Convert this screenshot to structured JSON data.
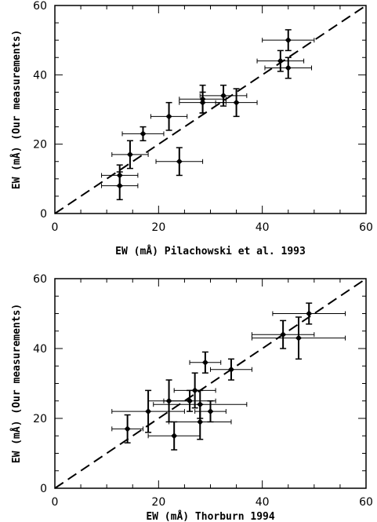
{
  "chart_data": [
    {
      "type": "scatter",
      "xlabel": "EW (mÅ) Pilachowski et al. 1993",
      "ylabel": "EW (mÅ) (Our measurements)",
      "xlim": [
        0,
        60
      ],
      "ylim": [
        0,
        60
      ],
      "xticks": [
        0,
        20,
        40,
        60
      ],
      "yticks": [
        0,
        20,
        40,
        60
      ],
      "xtick_labels": [
        "0",
        "20",
        "40",
        "60"
      ],
      "ytick_labels": [
        "0",
        "20",
        "40",
        "60"
      ],
      "minor_tick_step": 5,
      "reference_line": {
        "style": "dashed",
        "from": [
          0,
          0
        ],
        "to": [
          60,
          60
        ]
      },
      "grid": false,
      "points": [
        {
          "x": 45.0,
          "y": 50.0,
          "xerr": 5.0,
          "yerr": 3.0
        },
        {
          "x": 43.5,
          "y": 44.0,
          "xerr": 4.5,
          "yerr": 3.0
        },
        {
          "x": 45.0,
          "y": 42.0,
          "xerr": 4.5,
          "yerr": 3.0
        },
        {
          "x": 32.5,
          "y": 34.0,
          "xerr": 4.5,
          "yerr": 3.0
        },
        {
          "x": 28.5,
          "y": 33.0,
          "xerr": 4.5,
          "yerr": 4.0
        },
        {
          "x": 28.5,
          "y": 32.0,
          "xerr": 4.5,
          "yerr": 3.0
        },
        {
          "x": 35.0,
          "y": 32.0,
          "xerr": 4.0,
          "yerr": 4.0
        },
        {
          "x": 22.0,
          "y": 28.0,
          "xerr": 3.5,
          "yerr": 4.0
        },
        {
          "x": 17.0,
          "y": 23.0,
          "xerr": 4.0,
          "yerr": 2.0
        },
        {
          "x": 14.5,
          "y": 17.0,
          "xerr": 3.5,
          "yerr": 4.0
        },
        {
          "x": 24.0,
          "y": 15.0,
          "xerr": 4.5,
          "yerr": 4.0
        },
        {
          "x": 12.5,
          "y": 11.0,
          "xerr": 3.5,
          "yerr": 3.0
        },
        {
          "x": 12.5,
          "y": 8.0,
          "xerr": 3.5,
          "yerr": 4.0
        }
      ]
    },
    {
      "type": "scatter",
      "xlabel": "EW (mÅ) Thorburn 1994",
      "ylabel": "EW (mÅ) (Our measurements)",
      "xlim": [
        0,
        60
      ],
      "ylim": [
        0,
        60
      ],
      "xticks": [
        0,
        20,
        40,
        60
      ],
      "yticks": [
        0,
        20,
        40,
        60
      ],
      "xtick_labels": [
        "0",
        "20",
        "40",
        "60"
      ],
      "ytick_labels": [
        "0",
        "20",
        "40",
        "60"
      ],
      "minor_tick_step": 5,
      "reference_line": {
        "style": "dashed",
        "from": [
          0,
          0
        ],
        "to": [
          60,
          60
        ]
      },
      "grid": false,
      "points": [
        {
          "x": 49.0,
          "y": 50.0,
          "xerr": 7.0,
          "yerr": 3.0
        },
        {
          "x": 44.0,
          "y": 44.0,
          "xerr": 6.0,
          "yerr": 4.0
        },
        {
          "x": 47.0,
          "y": 43.0,
          "xerr": 9.0,
          "yerr": 6.0
        },
        {
          "x": 29.0,
          "y": 36.0,
          "xerr": 3.0,
          "yerr": 3.0
        },
        {
          "x": 34.0,
          "y": 34.0,
          "xerr": 4.0,
          "yerr": 3.0
        },
        {
          "x": 27.0,
          "y": 28.0,
          "xerr": 4.0,
          "yerr": 5.0
        },
        {
          "x": 22.0,
          "y": 25.0,
          "xerr": 4.0,
          "yerr": 6.0
        },
        {
          "x": 26.0,
          "y": 25.0,
          "xerr": 5.0,
          "yerr": 3.0
        },
        {
          "x": 28.0,
          "y": 24.0,
          "xerr": 9.0,
          "yerr": 4.0
        },
        {
          "x": 30.0,
          "y": 22.0,
          "xerr": 3.0,
          "yerr": 3.0
        },
        {
          "x": 18.0,
          "y": 22.0,
          "xerr": 7.0,
          "yerr": 6.0
        },
        {
          "x": 28.0,
          "y": 19.0,
          "xerr": 6.0,
          "yerr": 5.0
        },
        {
          "x": 14.0,
          "y": 17.0,
          "xerr": 3.0,
          "yerr": 4.0
        },
        {
          "x": 23.0,
          "y": 15.0,
          "xerr": 5.0,
          "yerr": 4.0
        }
      ]
    }
  ]
}
